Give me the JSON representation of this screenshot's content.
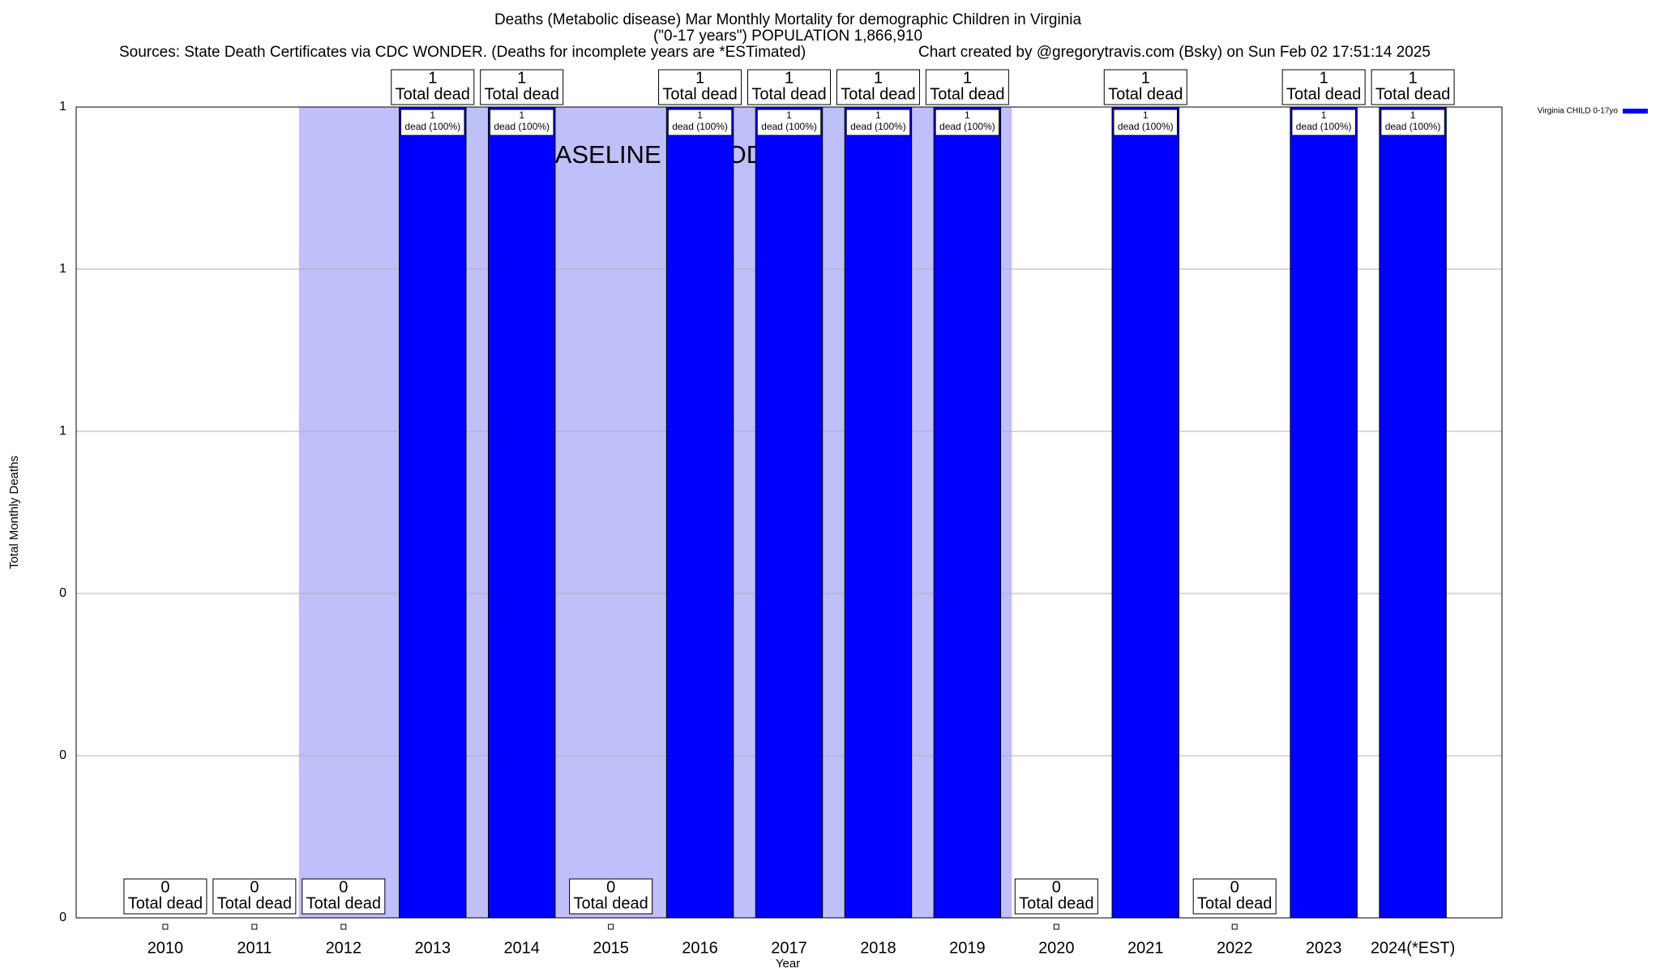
{
  "chart_data": {
    "type": "bar",
    "title": "Deaths (Metabolic disease) Mar Monthly Mortality for demographic Children in Virginia",
    "subtitle": "(\"0-17 years\") POPULATION 1,866,910",
    "sources": "Sources: State Death Certificates via CDC WONDER. (Deaths for incomplete years are *ESTimated)",
    "credit": "Chart created by @gregorytravis.com (Bsky) on Sun Feb 02 17:51:14 2025",
    "x_label": "Year",
    "y_label": "Total Monthly Deaths",
    "categories": [
      "2010",
      "2011",
      "2012",
      "2013",
      "2014",
      "2015",
      "2016",
      "2017",
      "2018",
      "2019",
      "2020",
      "2021",
      "2022",
      "2023",
      "2024(*EST)"
    ],
    "series": [
      {
        "name": "Virginia CHILD 0-17yo",
        "color": "#0000ff",
        "values": [
          0,
          0,
          0,
          1,
          1,
          0,
          1,
          1,
          1,
          1,
          0,
          1,
          0,
          1,
          1
        ]
      }
    ],
    "total_label": "Total dead",
    "inner_label": "dead (100%)",
    "baseline": {
      "label": "BASELINE PERIOD",
      "from": "2012",
      "to": "2019",
      "color": "#bfbffa"
    },
    "ylim": [
      0,
      1
    ],
    "yticks": [
      0,
      {
        "value": 0.2,
        "label": "0"
      },
      {
        "value": 0.4,
        "label": "0"
      },
      {
        "value": 0.6,
        "label": "1"
      },
      {
        "value": 0.8,
        "label": "1"
      },
      1
    ],
    "grid": true,
    "legend": "top-right-outside"
  }
}
